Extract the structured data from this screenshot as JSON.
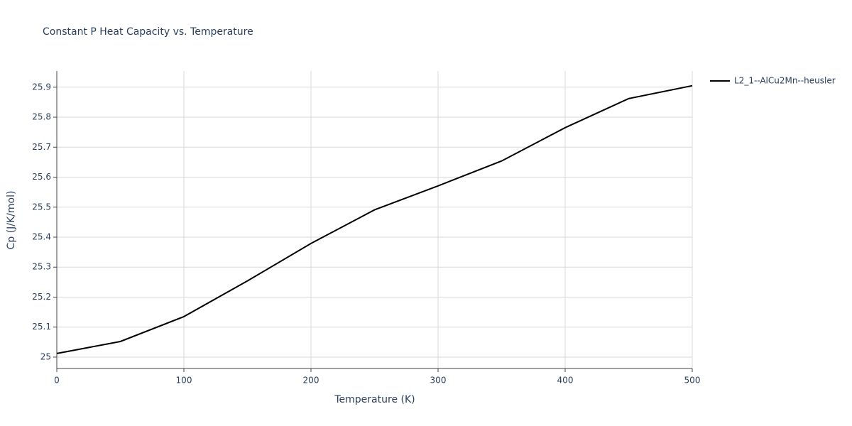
{
  "chart_data": {
    "type": "line",
    "title": "Constant P Heat Capacity vs. Temperature",
    "x_label": "Temperature (K)",
    "y_label": "Cp (J/K/mol)",
    "x": [
      0,
      50,
      100,
      150,
      200,
      250,
      300,
      350,
      400,
      450,
      500
    ],
    "series": [
      {
        "name": "L2_1--AlCu2Mn--heusler",
        "color": "#000000",
        "values": [
          25.012,
          25.052,
          25.135,
          25.254,
          25.379,
          25.491,
          25.571,
          25.654,
          25.765,
          25.862,
          25.905
        ]
      }
    ],
    "xlim": [
      0,
      500
    ],
    "xticks": [
      0,
      100,
      200,
      300,
      400,
      500
    ],
    "ylim": [
      24.962,
      25.954
    ],
    "yticks": [
      25,
      25.1,
      25.2,
      25.3,
      25.4,
      25.5,
      25.6,
      25.7,
      25.8,
      25.9
    ],
    "grid": true,
    "legend": "right"
  }
}
